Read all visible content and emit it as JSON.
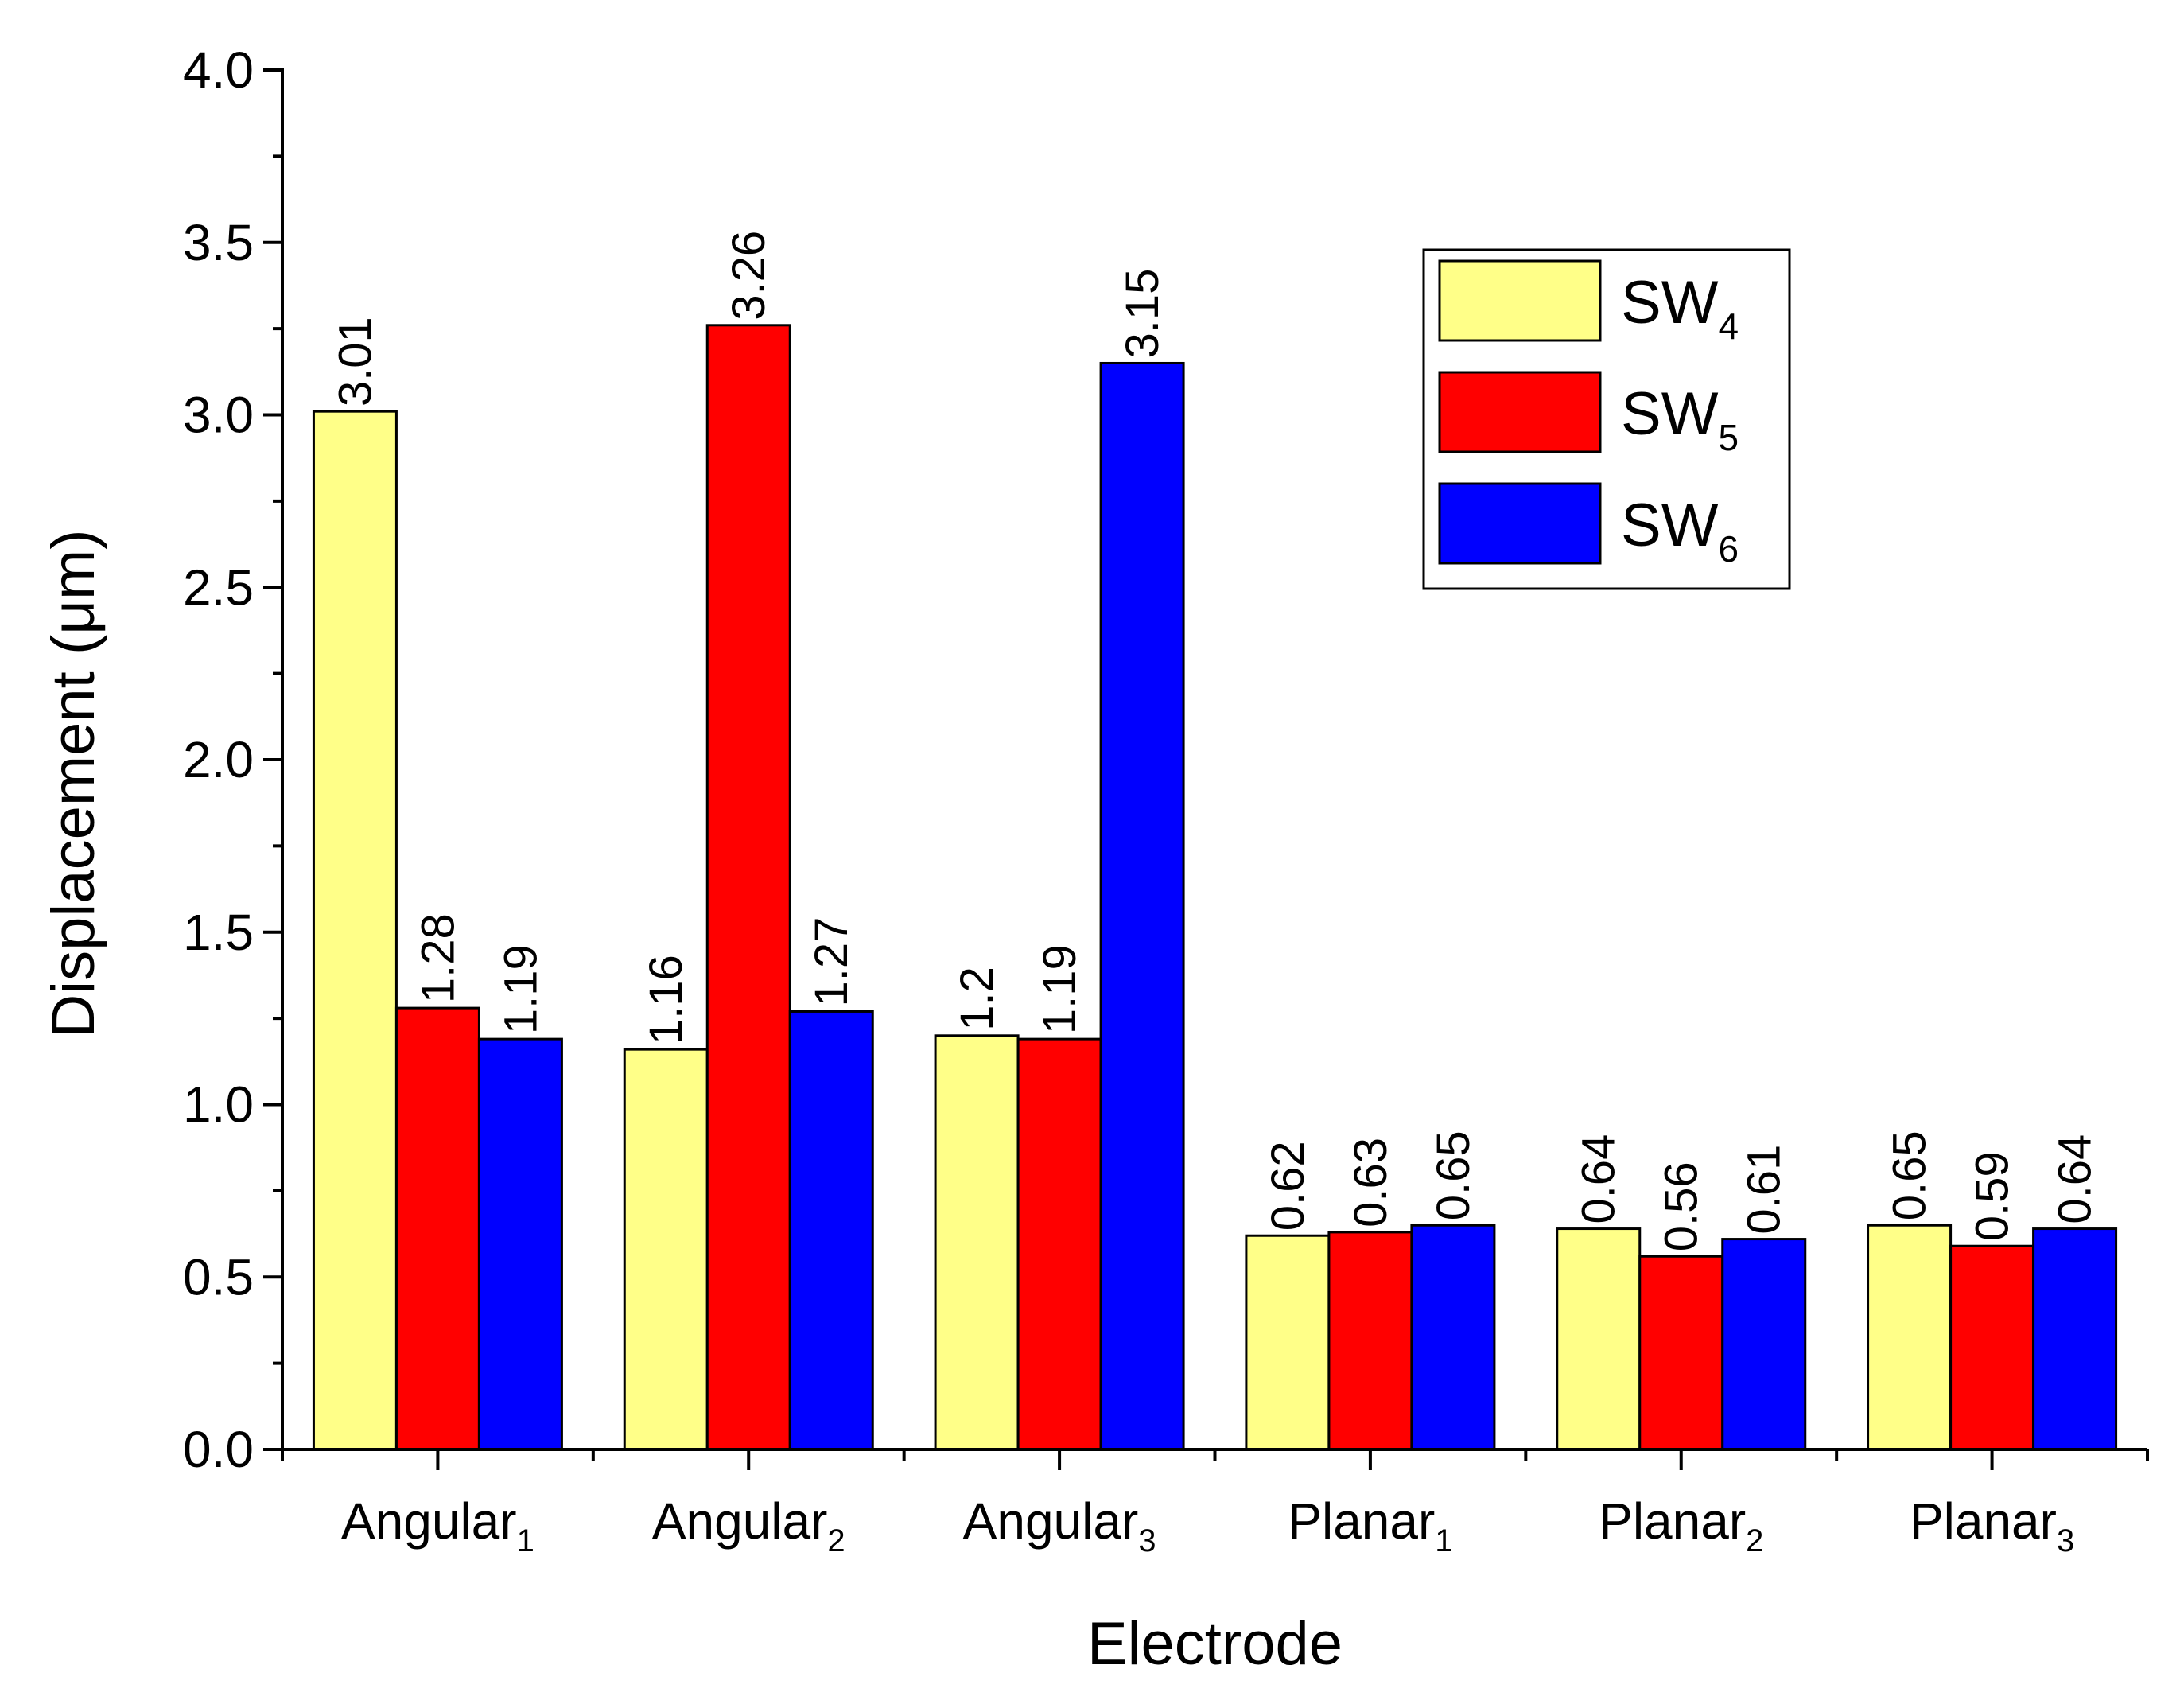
{
  "chart_data": {
    "type": "bar",
    "title": "",
    "xlabel": "Electrode",
    "ylabel": "Displacement (μm)",
    "ylim": [
      0.0,
      4.0
    ],
    "yticks": [
      "0.0",
      "0.5",
      "1.0",
      "1.5",
      "2.0",
      "2.5",
      "3.0",
      "3.5",
      "4.0"
    ],
    "categories": [
      {
        "base": "Angular",
        "sub": "1"
      },
      {
        "base": "Angular",
        "sub": "2"
      },
      {
        "base": "Angular",
        "sub": "3"
      },
      {
        "base": "Planar",
        "sub": "1"
      },
      {
        "base": "Planar",
        "sub": "2"
      },
      {
        "base": "Planar",
        "sub": "3"
      }
    ],
    "series": [
      {
        "name": "SW",
        "sub": "4",
        "color": "#ffff88",
        "values": [
          3.01,
          1.16,
          1.2,
          0.62,
          0.64,
          0.65
        ],
        "labels": [
          "3.01",
          "1.16",
          "1.2",
          "0.62",
          "0.64",
          "0.65"
        ]
      },
      {
        "name": "SW",
        "sub": "5",
        "color": "#ff0000",
        "values": [
          1.28,
          3.26,
          1.19,
          0.63,
          0.56,
          0.59
        ],
        "labels": [
          "1.28",
          "3.26",
          "1.19",
          "0.63",
          "0.56",
          "0.59"
        ]
      },
      {
        "name": "SW",
        "sub": "6",
        "color": "#0000ff",
        "values": [
          1.19,
          1.27,
          3.15,
          0.65,
          0.61,
          0.64
        ],
        "labels": [
          "1.19",
          "1.27",
          "3.15",
          "0.65",
          "0.61",
          "0.64"
        ]
      }
    ],
    "legend_position": "top-right",
    "grid": false
  }
}
